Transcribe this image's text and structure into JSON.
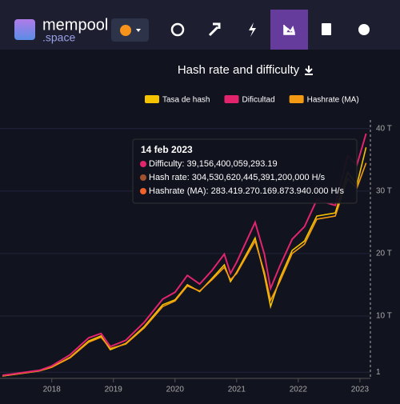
{
  "header": {
    "logo_main": "mempool",
    "logo_sub": ".space"
  },
  "chart_data": {
    "type": "line",
    "title": "Hash rate and difficulty",
    "x": [
      2017.2,
      2017.5,
      2017.8,
      2018.0,
      2018.3,
      2018.6,
      2018.8,
      2018.95,
      2019.2,
      2019.5,
      2019.8,
      2020.0,
      2020.2,
      2020.4,
      2020.6,
      2020.8,
      2020.9,
      2021.0,
      2021.3,
      2021.45,
      2021.55,
      2021.7,
      2021.9,
      2022.1,
      2022.3,
      2022.6,
      2022.8,
      2022.95,
      2023.1
    ],
    "series": [
      {
        "name": "Tasa de hash",
        "color": "#f5c400",
        "values": [
          0.4,
          0.8,
          1.2,
          1.8,
          3.4,
          6.0,
          6.8,
          4.6,
          5.6,
          8.3,
          11.8,
          12.6,
          15.0,
          13.9,
          16.0,
          18.2,
          15.5,
          17.0,
          22.5,
          16.5,
          11.5,
          16.0,
          20.5,
          22.0,
          26.0,
          26.5,
          33.0,
          31.0,
          37.0
        ]
      },
      {
        "name": "Dificultad",
        "color": "#e2246d",
        "values": [
          0.5,
          0.9,
          1.3,
          2.0,
          3.8,
          6.5,
          7.2,
          5.1,
          6.1,
          9.0,
          12.7,
          13.8,
          16.5,
          15.1,
          17.3,
          19.9,
          16.8,
          18.6,
          25.0,
          19.9,
          14.4,
          18.0,
          22.3,
          24.3,
          28.6,
          27.7,
          35.6,
          34.2,
          39.2
        ]
      },
      {
        "name": "Hashrate (MA)",
        "color": "#f39a14",
        "values": [
          0.4,
          0.8,
          1.2,
          1.8,
          3.3,
          5.8,
          6.6,
          4.8,
          5.5,
          8.1,
          11.5,
          12.4,
          14.8,
          14.0,
          15.8,
          17.8,
          15.8,
          16.8,
          22.0,
          17.0,
          12.5,
          15.5,
          20.0,
          21.5,
          25.5,
          26.0,
          32.0,
          30.5,
          34.5
        ]
      }
    ],
    "xlim": [
      2017.16,
      2023.17
    ],
    "xticks": [
      2018,
      2019,
      2020,
      2021,
      2022,
      2023
    ],
    "ylim": [
      0,
      41
    ],
    "yticks": [
      1,
      {
        "value": 10,
        "label": "10 T"
      },
      {
        "value": 20,
        "label": "20 T"
      },
      {
        "value": 30,
        "label": "30 T"
      },
      {
        "value": 40,
        "label": "40 T"
      }
    ],
    "grid": true,
    "tooltip": {
      "date": "14 feb 2023",
      "lines": [
        "Difficulty: 39,156,400,059,293.19",
        "Hash rate: 304,530,620,445,391,200,000 H/s",
        "Hashrate (MA): 283.419.270.169.873.940.000 H/s"
      ],
      "colors": [
        "#e2246d",
        "#a0522d",
        "#f0622a"
      ]
    }
  }
}
